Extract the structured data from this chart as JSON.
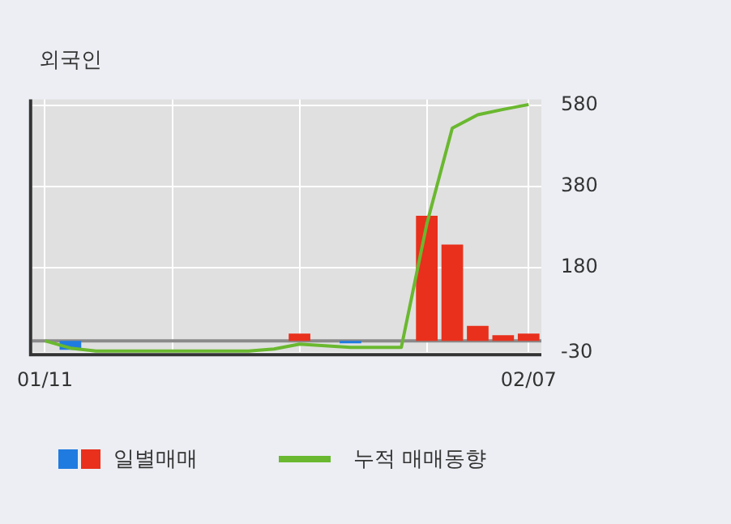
{
  "chart_data": {
    "type": "bar",
    "title": "외국인",
    "categories": [
      "01/11",
      null,
      null,
      null,
      null,
      null,
      null,
      null,
      null,
      null,
      null,
      null,
      null,
      null,
      null,
      null,
      null,
      null,
      null,
      "02/07"
    ],
    "series": [
      {
        "name": "일별매매",
        "colors": [
          "#1f7be0",
          "#1f7be0",
          "#1f7be0",
          "#1f7be0",
          "#1f7be0",
          "#1f7be0",
          "#1f7be0",
          "#1f7be0",
          "#1f7be0",
          "#1f7be0",
          "#e8301c",
          "#1f7be0",
          "#1f7be0",
          "#1f7be0",
          "#1f7be0",
          "#e8301c",
          "#e8301c",
          "#e8301c",
          "#e8301c",
          "#e8301c"
        ],
        "values": [
          0,
          -22,
          0,
          0,
          0,
          0,
          0,
          0,
          0,
          0,
          18,
          0,
          -6,
          0,
          0,
          308,
          237,
          37,
          14,
          18
        ]
      },
      {
        "name": "누적 매매동향",
        "type": "line",
        "color": "#6ab82f",
        "values": [
          0,
          -18,
          -25,
          -25,
          -25,
          -25,
          -25,
          -25,
          -25,
          -20,
          -8,
          -12,
          -16,
          -16,
          -16,
          288,
          524,
          557,
          570,
          582
        ]
      }
    ],
    "ylim": [
      -30,
      595
    ],
    "yticks": [
      -30,
      180,
      380,
      580
    ],
    "grid": true,
    "legend": "bottom",
    "marker": "none",
    "ref_lines": [
      {
        "axis": "y",
        "value": 0,
        "color": "#8a8a8a"
      }
    ]
  }
}
